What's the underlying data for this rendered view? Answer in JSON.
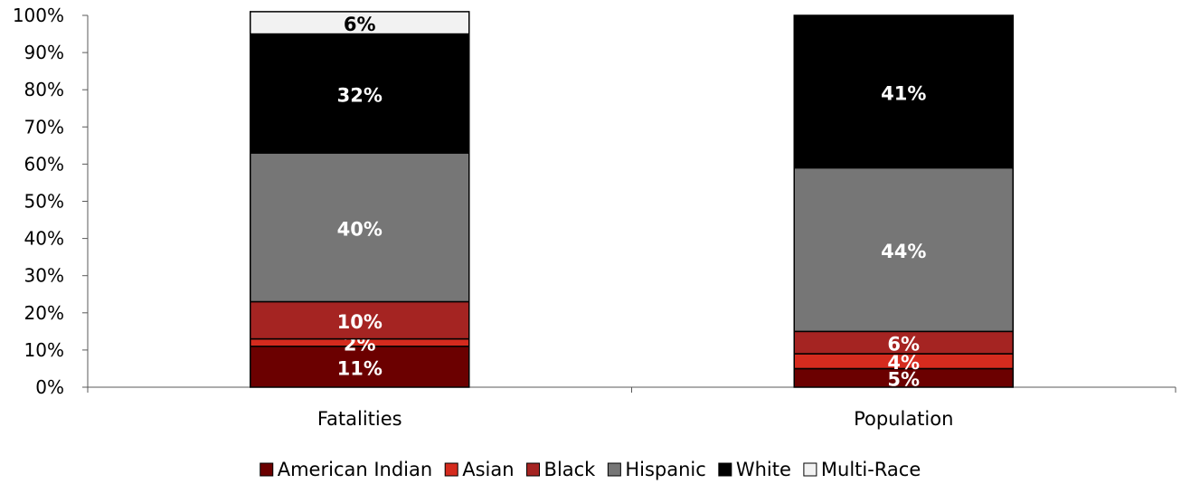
{
  "chart_data": {
    "type": "bar",
    "stacked": true,
    "categories": [
      "Fatalities",
      "Population"
    ],
    "series": [
      {
        "name": "American Indian",
        "values": [
          11,
          5
        ],
        "labels": [
          "11%",
          "5%"
        ],
        "color": "#6B0000"
      },
      {
        "name": "Asian",
        "values": [
          2,
          4
        ],
        "labels": [
          "2%",
          "4%"
        ],
        "color": "#D52B1E"
      },
      {
        "name": "Black",
        "values": [
          10,
          6
        ],
        "labels": [
          "10%",
          "6%"
        ],
        "color": "#A52422"
      },
      {
        "name": "Hispanic",
        "values": [
          40,
          44
        ],
        "labels": [
          "40%",
          "44%"
        ],
        "color": "#767676"
      },
      {
        "name": "White",
        "values": [
          32,
          41
        ],
        "labels": [
          "32%",
          "41%"
        ],
        "color": "#000000"
      },
      {
        "name": "Multi-Race",
        "values": [
          6,
          0
        ],
        "labels": [
          "6%",
          ""
        ],
        "color": "#F2F2F2"
      }
    ],
    "label_colors": [
      "#ffffff",
      "#ffffff",
      "#ffffff",
      "#ffffff",
      "#ffffff",
      "#000000"
    ],
    "ylim": [
      0,
      100
    ],
    "yticks": [
      0,
      10,
      20,
      30,
      40,
      50,
      60,
      70,
      80,
      90,
      100
    ],
    "ytick_labels": [
      "0%",
      "10%",
      "20%",
      "30%",
      "40%",
      "50%",
      "60%",
      "70%",
      "80%",
      "90%",
      "100%"
    ],
    "title": "",
    "xlabel": "",
    "ylabel": "",
    "grid": false,
    "legend_position": "bottom"
  }
}
